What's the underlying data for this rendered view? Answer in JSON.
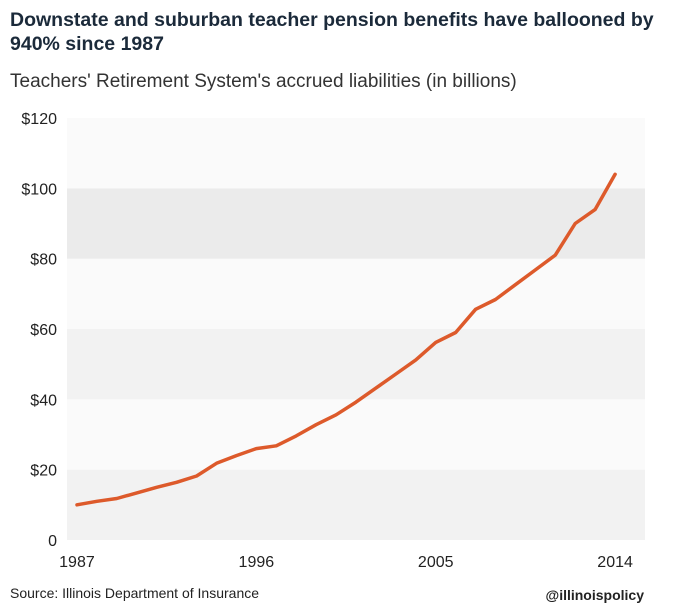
{
  "chart_data": {
    "type": "line",
    "title": "Downstate and suburban teacher pension benefits have ballooned by 940% since 1987",
    "subtitle": "Teachers' Retirement System's accrued liabilities (in billions)",
    "x": [
      1987,
      1988,
      1989,
      1990,
      1991,
      1992,
      1993,
      1994,
      1995,
      1996,
      1997,
      1998,
      1999,
      2000,
      2001,
      2002,
      2003,
      2004,
      2005,
      2006,
      2007,
      2008,
      2009,
      2010,
      2011,
      2012,
      2013,
      2014
    ],
    "series": [
      {
        "values": [
          10,
          11,
          11.8,
          13.4,
          15,
          16.4,
          18.2,
          21.8,
          24,
          26,
          26.8,
          29.6,
          32.8,
          35.6,
          39.2,
          43.2,
          47.2,
          51.2,
          56.2,
          59,
          65.6,
          68.4,
          72.6,
          76.8,
          81,
          90,
          94,
          104
        ]
      }
    ],
    "xticks": [
      "1987",
      "1996",
      "2005",
      "2014"
    ],
    "yticks": [
      "0",
      "$20",
      "$40",
      "$60",
      "$80",
      "$100",
      "$120"
    ],
    "xlabel": "",
    "ylabel": "",
    "xlim": [
      1986.5,
      2015.5
    ],
    "ylim": [
      0,
      120
    ],
    "grid": "alternating bands",
    "colors": {
      "line": "#dd5a2b",
      "band_dark": "#ebebeb",
      "band_mid": "#f2f2f2",
      "band_light": "#fafafa"
    }
  },
  "footer": {
    "source": "Source: Illinois Department of Insurance",
    "handle": "@illinoispolicy"
  }
}
